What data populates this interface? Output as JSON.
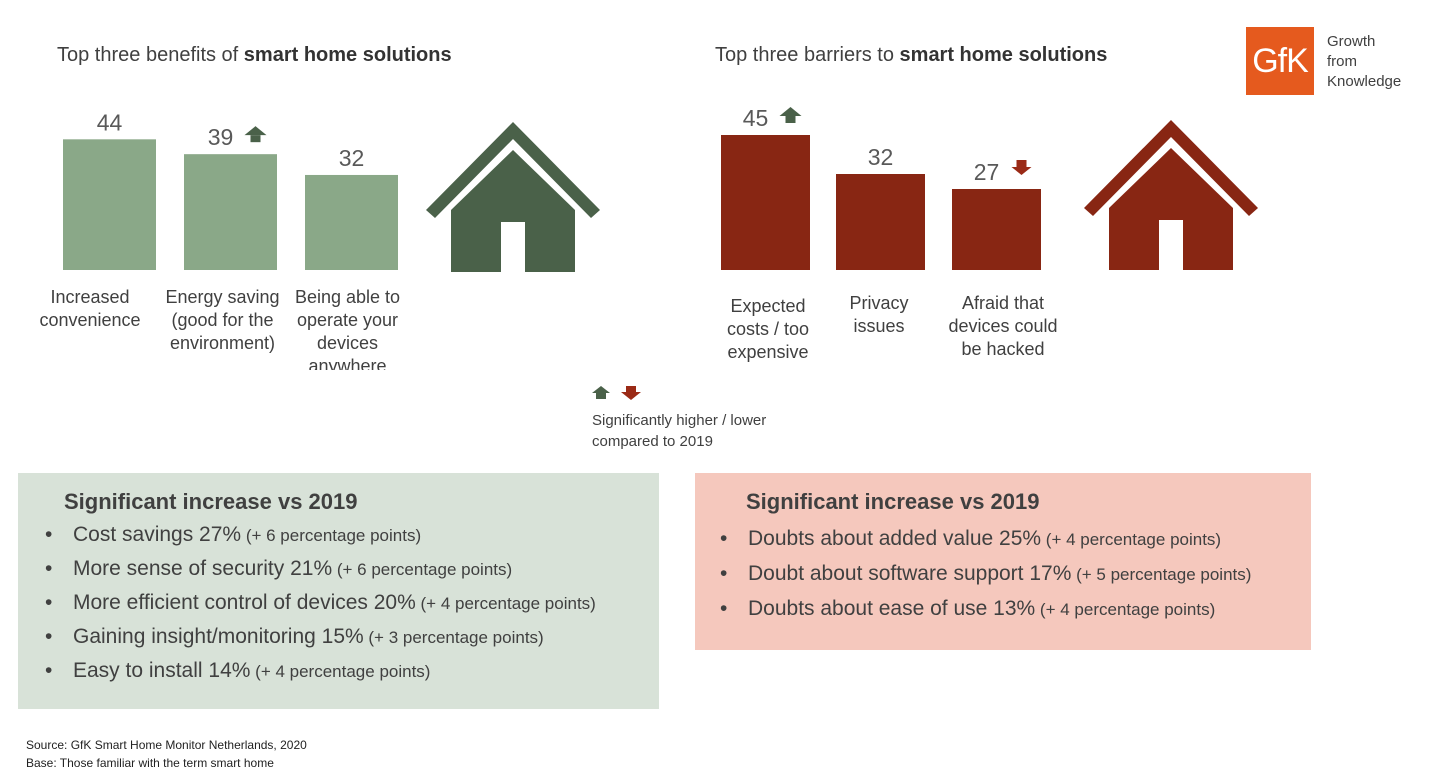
{
  "left_title": {
    "prefix": "Top three benefits of ",
    "bold": "smart home solutions"
  },
  "right_title": {
    "prefix": "Top three barriers to ",
    "bold": "smart home solutions"
  },
  "logo": {
    "mark": "GfK",
    "line1": "Growth",
    "line2": "from",
    "line3": "Knowledge",
    "color": "#e55a1e"
  },
  "chart_data": [
    {
      "type": "bar",
      "title": "Top three benefits of smart home solutions",
      "categories": [
        "Increased convenience",
        "Energy saving (good for the environment)",
        "Being able to operate your devices anywhere"
      ],
      "values": [
        44,
        39,
        32
      ],
      "labels": [
        "44",
        "39",
        "32"
      ],
      "significance": [
        "none",
        "higher",
        "none"
      ],
      "color": "#8aa888"
    },
    {
      "type": "bar",
      "title": "Top three barriers to smart home solutions",
      "categories": [
        "Expected costs / too expensive",
        "Privacy issues",
        "Afraid that devices could be hacked"
      ],
      "values": [
        45,
        32,
        27
      ],
      "labels": [
        "45",
        "32",
        "27"
      ],
      "significance": [
        "higher",
        "none",
        "lower"
      ],
      "color": "#882613"
    }
  ],
  "colors": {
    "benefit": "#8aa888",
    "barrier": "#882613",
    "house_green": "#4a6149",
    "arrow_up": "#4a6149",
    "arrow_down": "#9a2a16",
    "benefit_box": "#d8e2d8",
    "barrier_box": "#f5c8bd"
  },
  "legend": {
    "line1": "Significantly higher / lower",
    "line2": "compared to 2019"
  },
  "benefit_box": {
    "heading": "Significant increase vs 2019",
    "items": [
      {
        "text": "Cost savings 27%",
        "note": "(+ 6 percentage points)"
      },
      {
        "text": "More sense of security 21%",
        "note": "(+ 6 percentage points)"
      },
      {
        "text": "More efficient control of devices 20%",
        "note": "(+ 4 percentage points)"
      },
      {
        "text": "Gaining insight/monitoring 15%",
        "note": "(+ 3 percentage points)"
      },
      {
        "text": "Easy to install 14%",
        "note": "(+ 4 percentage points)"
      }
    ]
  },
  "barrier_box": {
    "heading": "Significant increase vs 2019",
    "items": [
      {
        "text": "Doubts about added value 25%",
        "note": "(+ 4 percentage points)"
      },
      {
        "text": "Doubt about software support 17%",
        "note": "(+ 5 percentage points)"
      },
      {
        "text": "Doubts about ease of use 13%",
        "note": "(+ 4 percentage points)"
      }
    ]
  },
  "footer": {
    "source": "Source: GfK Smart Home Monitor Netherlands, 2020",
    "base": "Base: Those familiar with the term smart home"
  }
}
